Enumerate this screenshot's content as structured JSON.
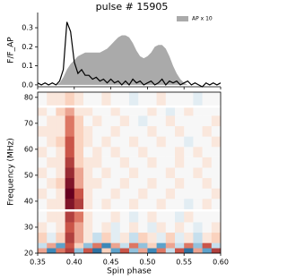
{
  "chart_data": [
    {
      "type": "line",
      "title": "pulse # 15905",
      "ylabel": "F/F_AP",
      "x": [
        0.35,
        0.355,
        0.36,
        0.365,
        0.37,
        0.375,
        0.38,
        0.385,
        0.39,
        0.395,
        0.4,
        0.405,
        0.41,
        0.415,
        0.42,
        0.425,
        0.43,
        0.435,
        0.44,
        0.445,
        0.45,
        0.455,
        0.46,
        0.465,
        0.47,
        0.475,
        0.48,
        0.485,
        0.49,
        0.495,
        0.5,
        0.505,
        0.51,
        0.515,
        0.52,
        0.525,
        0.53,
        0.535,
        0.54,
        0.545,
        0.55,
        0.555,
        0.56,
        0.565,
        0.57,
        0.575,
        0.58,
        0.585,
        0.59,
        0.595,
        0.6
      ],
      "series": [
        {
          "name": "AP x 10",
          "type": "area",
          "color": "#aaaaaa",
          "values": [
            0,
            0,
            0,
            0,
            0,
            0,
            0.01,
            0.04,
            0.08,
            0.11,
            0.13,
            0.15,
            0.16,
            0.17,
            0.17,
            0.17,
            0.17,
            0.17,
            0.18,
            0.19,
            0.21,
            0.23,
            0.25,
            0.26,
            0.26,
            0.25,
            0.22,
            0.18,
            0.15,
            0.14,
            0.15,
            0.17,
            0.2,
            0.21,
            0.21,
            0.19,
            0.15,
            0.1,
            0.06,
            0.03,
            0.01,
            0,
            0,
            0,
            0,
            0,
            0,
            0,
            0,
            0,
            0
          ]
        },
        {
          "type": "line",
          "color": "#000000",
          "values": [
            0.01,
            0,
            0.01,
            0,
            0.01,
            0,
            0.02,
            0.08,
            0.33,
            0.28,
            0.12,
            0.06,
            0.08,
            0.05,
            0.05,
            0.03,
            0.04,
            0.02,
            0.03,
            0.01,
            0.03,
            0.01,
            0.02,
            0,
            0.02,
            0,
            0.03,
            0.01,
            0.02,
            0,
            0.01,
            0.02,
            0,
            0.01,
            0.03,
            0,
            0.02,
            0.01,
            0.02,
            0,
            0.01,
            0.02,
            0,
            0.01,
            0,
            -0.01,
            0.01,
            0,
            0.01,
            0,
            0.01
          ]
        }
      ],
      "xlim": [
        0.35,
        0.6
      ],
      "xticks": [
        0.35,
        {
          "value": 0.4,
          "label": "0.40"
        },
        0.45,
        {
          "value": 0.5,
          "label": "0.50"
        },
        0.55,
        {
          "value": 0.6,
          "label": "0.60"
        }
      ],
      "ylim": [
        -0.01,
        0.38
      ],
      "yticks": [
        {
          "value": 0,
          "label": "0.0"
        },
        0.1,
        0.2,
        0.3
      ],
      "legend": "upper right"
    },
    {
      "type": "heatmap",
      "xlabel": "Spin phase",
      "ylabel": "Frequency (MHz)",
      "colormap": "RdBu_r",
      "x_edges": [
        0.35,
        0.3625,
        0.375,
        0.3875,
        0.4,
        0.4125,
        0.425,
        0.4375,
        0.45,
        0.4625,
        0.475,
        0.4875,
        0.5,
        0.5125,
        0.525,
        0.5375,
        0.55,
        0.5625,
        0.575,
        0.5875,
        0.6
      ],
      "y_edges": [
        20,
        22,
        24,
        28,
        32,
        36,
        37,
        41,
        45,
        49,
        53,
        57,
        61,
        65,
        69,
        73,
        76,
        77,
        82
      ],
      "values": [
        [
          0.3,
          -0.5,
          0.4,
          0.6,
          -0.3,
          0.5,
          -0.6,
          0.2,
          -0.4,
          0.5,
          -0.3,
          0.3,
          -0.5,
          0.4,
          -0.2,
          0.5,
          -0.6,
          0.3,
          -0.4,
          0.6
        ],
        [
          -0.2,
          0.3,
          -0.4,
          0.5,
          0.2,
          -0.3,
          0.4,
          -0.5,
          0.3,
          -0.2,
          0.4,
          -0.3,
          0.2,
          -0.4,
          0.3,
          -0.2,
          0.4,
          -0.3,
          0.5,
          -0.2
        ],
        [
          0.2,
          -0.1,
          0.2,
          0.6,
          0.3,
          0.1,
          -0.2,
          0.2,
          -0.1,
          0.1,
          -0.2,
          0.2,
          0.1,
          -0.1,
          0.2,
          -0.1,
          0.1,
          -0.2,
          0.1,
          0.2
        ],
        [
          0.1,
          0,
          0.1,
          0.5,
          0.3,
          0.1,
          0,
          0.1,
          -0.1,
          0,
          0.1,
          0,
          -0.1,
          0.1,
          0,
          0.1,
          0,
          -0.1,
          0,
          0.1
        ],
        [
          0,
          0.1,
          0.1,
          0.6,
          0.4,
          0.1,
          0,
          0,
          0.1,
          0,
          -0.1,
          0,
          0.1,
          0,
          0,
          -0.1,
          0.1,
          0,
          0,
          0
        ],
        [
          null,
          null,
          null,
          null,
          null,
          null,
          null,
          null,
          null,
          null,
          null,
          null,
          null,
          null,
          null,
          null,
          null,
          null,
          null,
          null
        ],
        [
          0,
          0.1,
          0.1,
          0.8,
          0.6,
          0.1,
          0,
          0.1,
          0,
          0,
          0.1,
          0,
          0,
          0.1,
          0,
          0,
          -0.1,
          0,
          0.1,
          0
        ],
        [
          0.1,
          0,
          0.1,
          0.9,
          0.5,
          0.1,
          0,
          0,
          0.1,
          0,
          0,
          0.1,
          0,
          0,
          0.1,
          0,
          0,
          0,
          0,
          0.1
        ],
        [
          0,
          0.1,
          0.2,
          0.8,
          0.3,
          0.1,
          0.1,
          0,
          0,
          0.1,
          0,
          0,
          0.1,
          0,
          0,
          0.1,
          0,
          0,
          0.1,
          0
        ],
        [
          0.1,
          0,
          0.1,
          0.7,
          0.3,
          0.1,
          0,
          0.1,
          0,
          0,
          0.1,
          0,
          0,
          0,
          0.1,
          0,
          0,
          0.1,
          0,
          0
        ],
        [
          0,
          0.1,
          0.1,
          0.6,
          0.2,
          0.1,
          0.1,
          0,
          0,
          0.1,
          0,
          0,
          0.1,
          0,
          0,
          0.1,
          0,
          0,
          0.1,
          0
        ],
        [
          0.1,
          0,
          0.1,
          0.5,
          0.2,
          0,
          0.1,
          0,
          0.1,
          0,
          0,
          0.1,
          0,
          0,
          0,
          0.1,
          0,
          0.1,
          0,
          0
        ],
        [
          0,
          0.1,
          0.2,
          0.5,
          0.2,
          0.1,
          0,
          0.1,
          0,
          0,
          0.1,
          0,
          0,
          0.1,
          0,
          0,
          -0.1,
          0,
          0,
          0.1
        ],
        [
          0.1,
          0.1,
          0.1,
          0.4,
          0.2,
          0.1,
          0,
          0,
          0.1,
          0,
          0,
          0,
          0.1,
          0,
          0,
          0.1,
          0,
          0,
          0.1,
          0
        ],
        [
          0,
          0.1,
          0.1,
          0.4,
          0.2,
          0,
          0.1,
          0,
          0,
          0.1,
          0,
          -0.1,
          0,
          0,
          0.1,
          0,
          0,
          0,
          0,
          0.1
        ],
        [
          0.1,
          0,
          0.2,
          0.3,
          0.1,
          0.1,
          0,
          0,
          0.1,
          0,
          0,
          0,
          0.1,
          0,
          -0.1,
          0,
          0.1,
          0,
          0,
          0
        ],
        [
          null,
          null,
          null,
          null,
          null,
          null,
          null,
          null,
          null,
          null,
          null,
          null,
          null,
          null,
          null,
          null,
          null,
          null,
          null,
          null
        ],
        [
          0,
          0.1,
          0.1,
          0.2,
          0.1,
          0,
          0,
          0.1,
          0,
          0,
          -0.1,
          0,
          0,
          0.1,
          0,
          0,
          0,
          -0.1,
          0,
          0
        ]
      ],
      "xlim": [
        0.35,
        0.6
      ],
      "xticks": [
        0.35,
        {
          "value": 0.4,
          "label": "0.40"
        },
        0.45,
        {
          "value": 0.5,
          "label": "0.50"
        },
        0.55,
        {
          "value": 0.6,
          "label": "0.60"
        }
      ],
      "ylim": [
        20,
        82
      ],
      "yticks": [
        20,
        30,
        40,
        50,
        60,
        70,
        80
      ]
    }
  ]
}
